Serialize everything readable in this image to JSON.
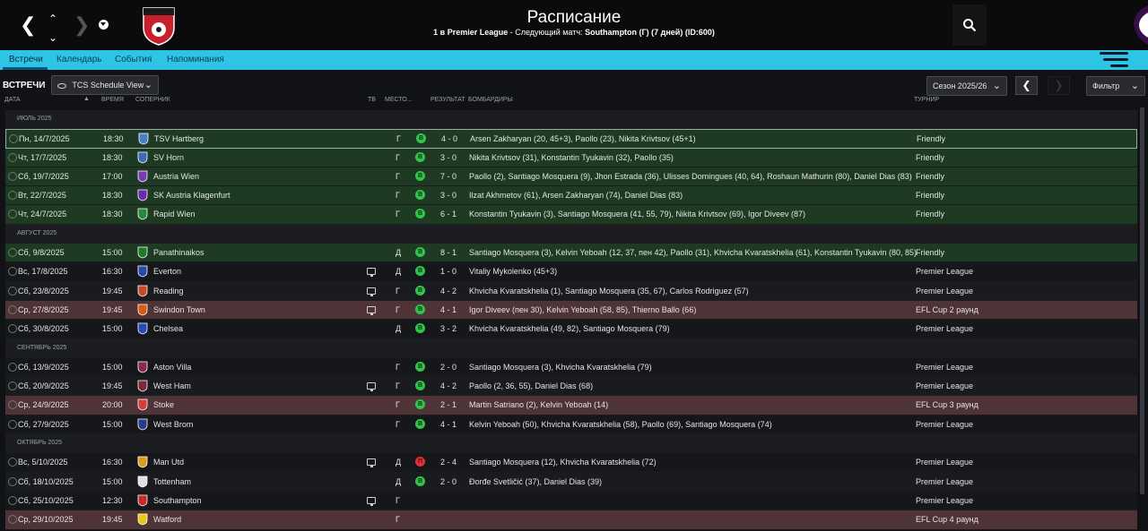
{
  "header": {
    "title": "Расписание",
    "subtitle_pos": "1 в",
    "subtitle_league": "Premier League",
    "subtitle_sep": " - Следующий матч:",
    "subtitle_next": "Southampton (Г) (7 дней) (ID:600)"
  },
  "tabs": [
    {
      "label": "Встречи"
    },
    {
      "label": "Календарь"
    },
    {
      "label": "События"
    },
    {
      "label": "Напоминания"
    }
  ],
  "toolbar": {
    "section_label": "ВСТРЕЧИ",
    "view_select": "TCS Schedule View",
    "season_select": "Сезон 2025/26",
    "filter_label": "Фильтр"
  },
  "columns": {
    "date": "ДАТА",
    "time": "ВРЕМЯ",
    "opponent": "СОПЕРНИК",
    "tv": "ТВ",
    "venue": "МЕСТО...",
    "result": "РЕЗУЛЬТАТ",
    "scorers": "БОМБАРДИРЫ",
    "competition": "ТУРНИР"
  },
  "colors": {
    "tab_bar": "#2ec4e6",
    "win_row": "#1f3a22",
    "cup_row": "#4f3437",
    "win_badge": "#2fc44a",
    "loss_badge": "#e0303a"
  },
  "rows": [
    {
      "type": "group",
      "label": "ИЮЛЬ 2025"
    },
    {
      "type": "match",
      "style": "win selected",
      "date": "Пн, 14/7/2025",
      "time": "18:30",
      "opponent": "TSV Hartberg",
      "crest": "#4a7cc8",
      "tv": false,
      "venue": "Г",
      "result": "w",
      "result_letter": "В",
      "score": "4 - 0",
      "scorers": "Arsen Zakharyan (20, 45+3), Paollo (23), Nikita Krivtsov (45+1)",
      "competition": "Friendly"
    },
    {
      "type": "match",
      "style": "win",
      "date": "Чт, 17/7/2025",
      "time": "18:30",
      "opponent": "SV Horn",
      "crest": "#3a6ab8",
      "tv": false,
      "venue": "Г",
      "result": "w",
      "result_letter": "В",
      "score": "3 - 0",
      "scorers": "Nikita Krivtsov (31), Konstantin Tyukavin (32), Paollo (35)",
      "competition": "Friendly"
    },
    {
      "type": "match",
      "style": "win",
      "date": "Сб, 19/7/2025",
      "time": "17:00",
      "opponent": "Austria Wien",
      "crest": "#7a3ab0",
      "tv": false,
      "venue": "Г",
      "result": "w",
      "result_letter": "В",
      "score": "7 - 0",
      "scorers": "Paollo (2), Santiago Mosquera (9), Jhon Estrada (36), Ulisses Domingues (40, 64), Roshaun Mathurin (80), Daniel Dias (83)",
      "competition": "Friendly"
    },
    {
      "type": "match",
      "style": "win",
      "date": "Вт, 22/7/2025",
      "time": "18:30",
      "opponent": "SK Austria Klagenfurt",
      "crest": "#6a2ab0",
      "tv": false,
      "venue": "Г",
      "result": "w",
      "result_letter": "В",
      "score": "3 - 0",
      "scorers": "Ilzat Akhmetov (61), Arsen Zakharyan (74), Daniel Dias (83)",
      "competition": "Friendly"
    },
    {
      "type": "match",
      "style": "win",
      "date": "Чт, 24/7/2025",
      "time": "18:30",
      "opponent": "Rapid Wien",
      "crest": "#2a8a3a",
      "tv": false,
      "venue": "Г",
      "result": "w",
      "result_letter": "В",
      "score": "6 - 1",
      "scorers": "Konstantin Tyukavin (3), Santiago Mosquera (41, 55, 79), Nikita Krivtsov (69), Igor Diveev (87)",
      "competition": "Friendly"
    },
    {
      "type": "group",
      "label": "АВГУСТ 2025"
    },
    {
      "type": "match",
      "style": "win",
      "date": "Сб, 9/8/2025",
      "time": "15:00",
      "opponent": "Panathinaikos",
      "crest": "#1f7a2a",
      "tv": false,
      "venue": "Д",
      "result": "w",
      "result_letter": "В",
      "score": "8 - 1",
      "scorers": "Santiago Mosquera (3), Kelvin Yeboah (12, 37, пен 42), Paollo (31), Khvicha Kvaratskhelia (61), Konstantin Tyukavin (80, 85)",
      "competition": "Friendly"
    },
    {
      "type": "match",
      "style": "plain",
      "date": "Вс, 17/8/2025",
      "time": "16:30",
      "opponent": "Everton",
      "crest": "#2a4aa8",
      "tv": true,
      "venue": "Д",
      "result": "w",
      "result_letter": "В",
      "score": "1 - 0",
      "scorers": "Vitaliy Mykolenko (45+3)",
      "competition": "Premier League"
    },
    {
      "type": "match",
      "style": "alt",
      "date": "Сб, 23/8/2025",
      "time": "19:45",
      "opponent": "Reading",
      "crest": "#c84a2a",
      "tv": true,
      "venue": "Г",
      "result": "w",
      "result_letter": "В",
      "score": "4 - 2",
      "scorers": "Khvicha Kvaratskhelia (1), Santiago Mosquera (35, 67), Carlos Rodriguez (57)",
      "competition": "Premier League"
    },
    {
      "type": "match",
      "style": "cup",
      "date": "Ср, 27/8/2025",
      "time": "19:45",
      "opponent": "Swindon Town",
      "crest": "#d85a1a",
      "tv": true,
      "venue": "Г",
      "result": "w",
      "result_letter": "В",
      "score": "4 - 1",
      "scorers": "Igor Diveev (пен 30), Kelvin Yeboah (58, 85), Thierno Ballo (66)",
      "competition": "EFL Cup 2 раунд"
    },
    {
      "type": "match",
      "style": "plain",
      "date": "Сб, 30/8/2025",
      "time": "15:00",
      "opponent": "Chelsea",
      "crest": "#2a4ab8",
      "tv": false,
      "venue": "Д",
      "result": "w",
      "result_letter": "В",
      "score": "3 - 2",
      "scorers": "Khvicha Kvaratskhelia (49, 82), Santiago Mosquera (79)",
      "competition": "Premier League"
    },
    {
      "type": "group",
      "label": "СЕНТЯБРЬ 2025"
    },
    {
      "type": "match",
      "style": "plain",
      "date": "Сб, 13/9/2025",
      "time": "15:00",
      "opponent": "Aston Villa",
      "crest": "#8a2a4a",
      "tv": false,
      "venue": "Г",
      "result": "w",
      "result_letter": "В",
      "score": "2 - 0",
      "scorers": "Santiago Mosquera (3), Khvicha Kvaratskhelia (79)",
      "competition": "Premier League"
    },
    {
      "type": "match",
      "style": "alt",
      "date": "Сб, 20/9/2025",
      "time": "19:45",
      "opponent": "West Ham",
      "crest": "#7a2a3a",
      "tv": true,
      "venue": "Г",
      "result": "w",
      "result_letter": "В",
      "score": "4 - 2",
      "scorers": "Paollo (2, 36, 55), Daniel Dias (68)",
      "competition": "Premier League"
    },
    {
      "type": "match",
      "style": "cup",
      "date": "Ср, 24/9/2025",
      "time": "20:00",
      "opponent": "Stoke",
      "crest": "#d83a3a",
      "tv": false,
      "venue": "Г",
      "result": "w",
      "result_letter": "В",
      "score": "2 - 1",
      "scorers": "Martin Satriano (2), Kelvin Yeboah (14)",
      "competition": "EFL Cup 3 раунд"
    },
    {
      "type": "match",
      "style": "plain",
      "date": "Сб, 27/9/2025",
      "time": "15:00",
      "opponent": "West Brom",
      "crest": "#2a3a8a",
      "tv": false,
      "venue": "Г",
      "result": "w",
      "result_letter": "В",
      "score": "4 - 1",
      "scorers": "Kelvin Yeboah (50), Khvicha Kvaratskhelia (58), Paollo (69), Santiago Mosquera (74)",
      "competition": "Premier League"
    },
    {
      "type": "group",
      "label": "ОКТЯБРЬ 2025"
    },
    {
      "type": "match",
      "style": "plain",
      "date": "Вс, 5/10/2025",
      "time": "16:30",
      "opponent": "Man Utd",
      "crest": "#d8a01a",
      "tv": true,
      "venue": "Д",
      "result": "l",
      "result_letter": "П",
      "score": "2 - 4",
      "scorers": "Santiago Mosquera (12), Khvicha Kvaratskhelia (72)",
      "competition": "Premier League"
    },
    {
      "type": "match",
      "style": "alt",
      "date": "Сб, 18/10/2025",
      "time": "15:00",
      "opponent": "Tottenham",
      "crest": "#e0e0e0",
      "tv": false,
      "venue": "Д",
      "result": "w",
      "result_letter": "В",
      "score": "2 - 0",
      "scorers": "Đorđe Svetličić (37), Daniel Dias (39)",
      "competition": "Premier League"
    },
    {
      "type": "match",
      "style": "plain",
      "date": "Сб, 25/10/2025",
      "time": "12:30",
      "opponent": "Southampton",
      "crest": "#c82a2a",
      "tv": true,
      "venue": "Г",
      "result": "",
      "result_letter": "",
      "score": "",
      "scorers": "",
      "competition": "Premier League"
    },
    {
      "type": "match",
      "style": "cup",
      "date": "Ср, 29/10/2025",
      "time": "19:45",
      "opponent": "Watford",
      "crest": "#e8c81a",
      "tv": false,
      "venue": "Г",
      "result": "",
      "result_letter": "",
      "score": "",
      "scorers": "",
      "competition": "EFL Cup 4 раунд"
    }
  ]
}
